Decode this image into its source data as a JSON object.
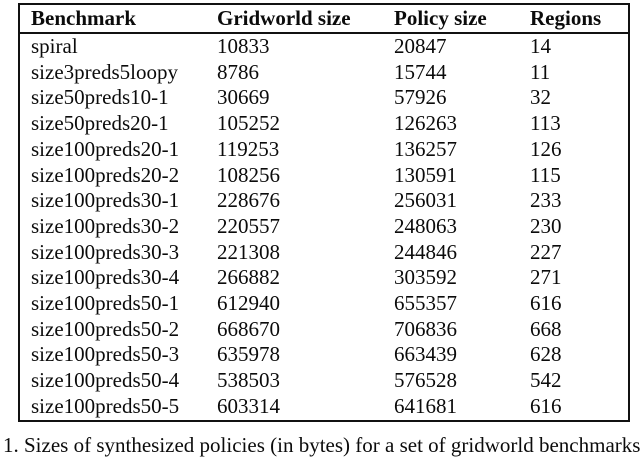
{
  "colors": {
    "background": "#ffffff",
    "text": "#0b0b0b",
    "border": "#111111"
  },
  "table": {
    "columns": [
      "Benchmark",
      "Gridworld size",
      "Policy size",
      "Regions"
    ],
    "rows": [
      {
        "benchmark": "spiral",
        "gridworld_size": "10833",
        "policy_size": "20847",
        "regions": "14"
      },
      {
        "benchmark": "size3preds5loopy",
        "gridworld_size": "8786",
        "policy_size": "15744",
        "regions": "11"
      },
      {
        "benchmark": "size50preds10-1",
        "gridworld_size": "30669",
        "policy_size": "57926",
        "regions": "32"
      },
      {
        "benchmark": "size50preds20-1",
        "gridworld_size": "105252",
        "policy_size": "126263",
        "regions": "113"
      },
      {
        "benchmark": "size100preds20-1",
        "gridworld_size": "119253",
        "policy_size": "136257",
        "regions": "126"
      },
      {
        "benchmark": "size100preds20-2",
        "gridworld_size": "108256",
        "policy_size": "130591",
        "regions": "115"
      },
      {
        "benchmark": "size100preds30-1",
        "gridworld_size": "228676",
        "policy_size": "256031",
        "regions": "233"
      },
      {
        "benchmark": "size100preds30-2",
        "gridworld_size": "220557",
        "policy_size": "248063",
        "regions": "230"
      },
      {
        "benchmark": "size100preds30-3",
        "gridworld_size": "221308",
        "policy_size": "244846",
        "regions": "227"
      },
      {
        "benchmark": "size100preds30-4",
        "gridworld_size": "266882",
        "policy_size": "303592",
        "regions": "271"
      },
      {
        "benchmark": "size100preds50-1",
        "gridworld_size": "612940",
        "policy_size": "655357",
        "regions": "616"
      },
      {
        "benchmark": "size100preds50-2",
        "gridworld_size": "668670",
        "policy_size": "706836",
        "regions": "668"
      },
      {
        "benchmark": "size100preds50-3",
        "gridworld_size": "635978",
        "policy_size": "663439",
        "regions": "628"
      },
      {
        "benchmark": "size100preds50-4",
        "gridworld_size": "538503",
        "policy_size": "576528",
        "regions": "542"
      },
      {
        "benchmark": "size100preds50-5",
        "gridworld_size": "603314",
        "policy_size": "641681",
        "regions": "616"
      }
    ]
  },
  "caption": "1. Sizes of synthesized policies (in bytes) for a set of gridworld benchmarks"
}
